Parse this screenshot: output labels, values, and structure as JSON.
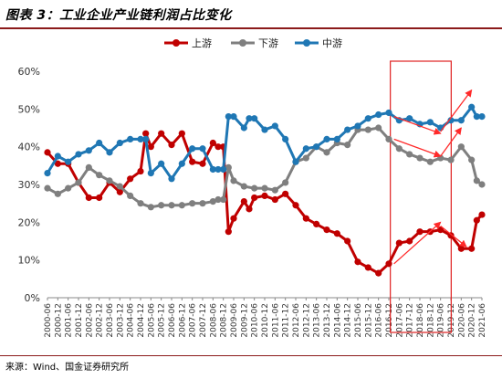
{
  "header": {
    "title": "图表 3：工业企业产业链利润占比变化"
  },
  "footer": {
    "source": "来源：Wind、国金证券研究所"
  },
  "chart_data": {
    "type": "line",
    "ylim": [
      0,
      60
    ],
    "yticks": [
      "0%",
      "10%",
      "20%",
      "30%",
      "40%",
      "50%",
      "60%"
    ],
    "legend_position": "top-center",
    "grid": false,
    "x": [
      "2000-06",
      "2000-09",
      "2000-12",
      "2001-03",
      "2001-06",
      "2001-09",
      "2001-12",
      "2002-03",
      "2002-06",
      "2002-09",
      "2002-12",
      "2003-03",
      "2003-06",
      "2003-09",
      "2003-12",
      "2004-03",
      "2004-06",
      "2004-09",
      "2004-12",
      "2005-03",
      "2005-06",
      "2005-09",
      "2005-12",
      "2006-03",
      "2006-06",
      "2006-09",
      "2006-12",
      "2007-03",
      "2007-06",
      "2007-09",
      "2007-12",
      "2008-03",
      "2008-06",
      "2008-09",
      "2008-12",
      "2009-03",
      "2009-06",
      "2009-09",
      "2009-12",
      "2010-03",
      "2010-06",
      "2010-09",
      "2010-12",
      "2011-03",
      "2011-06",
      "2011-09",
      "2011-12",
      "2012-03",
      "2012-06",
      "2012-09",
      "2012-12",
      "2013-03",
      "2013-06",
      "2013-09",
      "2013-12",
      "2014-03",
      "2014-06",
      "2014-09",
      "2014-12",
      "2015-03",
      "2015-06",
      "2015-09",
      "2015-12",
      "2016-03",
      "2016-06",
      "2016-09",
      "2016-12",
      "2017-03",
      "2017-06",
      "2017-09",
      "2017-12",
      "2018-03",
      "2018-06",
      "2018-09",
      "2018-12",
      "2019-03",
      "2019-06",
      "2019-09",
      "2019-12",
      "2020-03",
      "2020-06",
      "2020-09",
      "2020-12",
      "2021-03",
      "2021-06"
    ],
    "tick_labels": [
      "2000-06",
      "2000-12",
      "2001-06",
      "2001-12",
      "2002-06",
      "2002-12",
      "2003-06",
      "2003-12",
      "2004-06",
      "2004-12",
      "2005-06",
      "2005-12",
      "2006-06",
      "2006-12",
      "2007-06",
      "2007-12",
      "2008-06",
      "2008-12",
      "2009-06",
      "2009-12",
      "2010-06",
      "2010-12",
      "2011-06",
      "2011-12",
      "2012-06",
      "2012-12",
      "2013-06",
      "2013-12",
      "2014-06",
      "2014-12",
      "2015-06",
      "2015-12",
      "2016-06",
      "2016-12",
      "2017-06",
      "2017-12",
      "2018-06",
      "2018-12",
      "2019-06",
      "2019-12",
      "2020-06",
      "2020-12",
      "2021-06"
    ],
    "series": [
      {
        "name": "上游",
        "color": "#c00000",
        "marker": "circle",
        "points": [
          [
            "2000-06",
            38.5
          ],
          [
            "2000-12",
            35.5
          ],
          [
            "2001-06",
            35.5
          ],
          [
            "2001-12",
            30.5
          ],
          [
            "2002-06",
            26.5
          ],
          [
            "2002-12",
            26.5
          ],
          [
            "2003-06",
            30.5
          ],
          [
            "2003-12",
            28
          ],
          [
            "2004-06",
            31.5
          ],
          [
            "2004-12",
            33.5
          ],
          [
            "2005-03",
            43.5
          ],
          [
            "2005-06",
            40
          ],
          [
            "2005-12",
            43.5
          ],
          [
            "2006-06",
            40.5
          ],
          [
            "2006-12",
            43.5
          ],
          [
            "2007-06",
            36
          ],
          [
            "2007-12",
            35.5
          ],
          [
            "2008-06",
            41
          ],
          [
            "2008-09",
            40
          ],
          [
            "2008-12",
            40
          ],
          [
            "2009-03",
            17.5
          ],
          [
            "2009-06",
            21
          ],
          [
            "2009-12",
            25.5
          ],
          [
            "2010-03",
            23.5
          ],
          [
            "2010-06",
            26.5
          ],
          [
            "2010-12",
            27
          ],
          [
            "2011-06",
            26
          ],
          [
            "2011-12",
            27.5
          ],
          [
            "2012-06",
            24.5
          ],
          [
            "2012-12",
            21
          ],
          [
            "2013-06",
            19.5
          ],
          [
            "2013-12",
            18
          ],
          [
            "2014-06",
            17
          ],
          [
            "2014-12",
            15
          ],
          [
            "2015-06",
            9.5
          ],
          [
            "2015-12",
            8
          ],
          [
            "2016-06",
            6.5
          ],
          [
            "2016-12",
            9
          ],
          [
            "2017-06",
            14.5
          ],
          [
            "2017-12",
            15
          ],
          [
            "2018-06",
            17.5
          ],
          [
            "2018-12",
            17.5
          ],
          [
            "2019-06",
            18
          ],
          [
            "2019-12",
            16.5
          ],
          [
            "2020-06",
            13
          ],
          [
            "2020-12",
            13
          ],
          [
            "2021-03",
            20.5
          ],
          [
            "2021-06",
            22
          ]
        ]
      },
      {
        "name": "下游",
        "color": "#7f7f7f",
        "marker": "circle",
        "points": [
          [
            "2000-06",
            29
          ],
          [
            "2000-12",
            27.5
          ],
          [
            "2001-06",
            29
          ],
          [
            "2001-12",
            30.5
          ],
          [
            "2002-06",
            34.5
          ],
          [
            "2002-12",
            32.5
          ],
          [
            "2003-06",
            31
          ],
          [
            "2003-12",
            29.5
          ],
          [
            "2004-06",
            27
          ],
          [
            "2004-12",
            25
          ],
          [
            "2005-06",
            24
          ],
          [
            "2005-12",
            24.5
          ],
          [
            "2006-06",
            24.5
          ],
          [
            "2006-12",
            24.5
          ],
          [
            "2007-06",
            25
          ],
          [
            "2007-12",
            25
          ],
          [
            "2008-06",
            25.5
          ],
          [
            "2008-09",
            26
          ],
          [
            "2008-12",
            26
          ],
          [
            "2009-03",
            34.5
          ],
          [
            "2009-06",
            31
          ],
          [
            "2009-12",
            29.5
          ],
          [
            "2010-06",
            29
          ],
          [
            "2010-12",
            29
          ],
          [
            "2011-06",
            28.5
          ],
          [
            "2011-12",
            30.5
          ],
          [
            "2012-06",
            36
          ],
          [
            "2012-12",
            37
          ],
          [
            "2013-06",
            40
          ],
          [
            "2013-12",
            38.5
          ],
          [
            "2014-06",
            41
          ],
          [
            "2014-12",
            40.5
          ],
          [
            "2015-06",
            44.5
          ],
          [
            "2015-12",
            44.5
          ],
          [
            "2016-06",
            45
          ],
          [
            "2016-12",
            42
          ],
          [
            "2017-06",
            39.5
          ],
          [
            "2017-12",
            38
          ],
          [
            "2018-06",
            37
          ],
          [
            "2018-12",
            36
          ],
          [
            "2019-06",
            37
          ],
          [
            "2019-12",
            36.5
          ],
          [
            "2020-06",
            40
          ],
          [
            "2020-12",
            36.5
          ],
          [
            "2021-03",
            31
          ],
          [
            "2021-06",
            30
          ]
        ]
      },
      {
        "name": "中游",
        "color": "#1f77b4",
        "marker": "circle",
        "points": [
          [
            "2000-06",
            33
          ],
          [
            "2000-12",
            37.5
          ],
          [
            "2001-06",
            36
          ],
          [
            "2001-12",
            38
          ],
          [
            "2002-06",
            39
          ],
          [
            "2002-12",
            41
          ],
          [
            "2003-06",
            38.5
          ],
          [
            "2003-12",
            41
          ],
          [
            "2004-06",
            42
          ],
          [
            "2004-12",
            42
          ],
          [
            "2005-03",
            42
          ],
          [
            "2005-06",
            33
          ],
          [
            "2005-12",
            35.5
          ],
          [
            "2006-06",
            31.5
          ],
          [
            "2006-12",
            35.5
          ],
          [
            "2007-06",
            39.5
          ],
          [
            "2007-12",
            39.5
          ],
          [
            "2008-06",
            34
          ],
          [
            "2008-09",
            34
          ],
          [
            "2008-12",
            34
          ],
          [
            "2009-03",
            48
          ],
          [
            "2009-06",
            48
          ],
          [
            "2009-12",
            45
          ],
          [
            "2010-03",
            47.5
          ],
          [
            "2010-06",
            47.5
          ],
          [
            "2010-12",
            44.5
          ],
          [
            "2011-06",
            45.5
          ],
          [
            "2011-12",
            42
          ],
          [
            "2012-06",
            36
          ],
          [
            "2012-12",
            39.5
          ],
          [
            "2013-06",
            40
          ],
          [
            "2013-12",
            42
          ],
          [
            "2014-06",
            42
          ],
          [
            "2014-12",
            44.5
          ],
          [
            "2015-06",
            45.5
          ],
          [
            "2015-12",
            47.5
          ],
          [
            "2016-06",
            48.5
          ],
          [
            "2016-12",
            49
          ],
          [
            "2017-06",
            47
          ],
          [
            "2017-12",
            47.5
          ],
          [
            "2018-06",
            46
          ],
          [
            "2018-12",
            46.5
          ],
          [
            "2019-06",
            45
          ],
          [
            "2019-12",
            47
          ],
          [
            "2020-06",
            47
          ],
          [
            "2020-12",
            50.5
          ],
          [
            "2021-03",
            48
          ],
          [
            "2021-06",
            48
          ]
        ]
      }
    ],
    "highlight_box": {
      "from": "2017-03",
      "to": "2019-09"
    }
  }
}
